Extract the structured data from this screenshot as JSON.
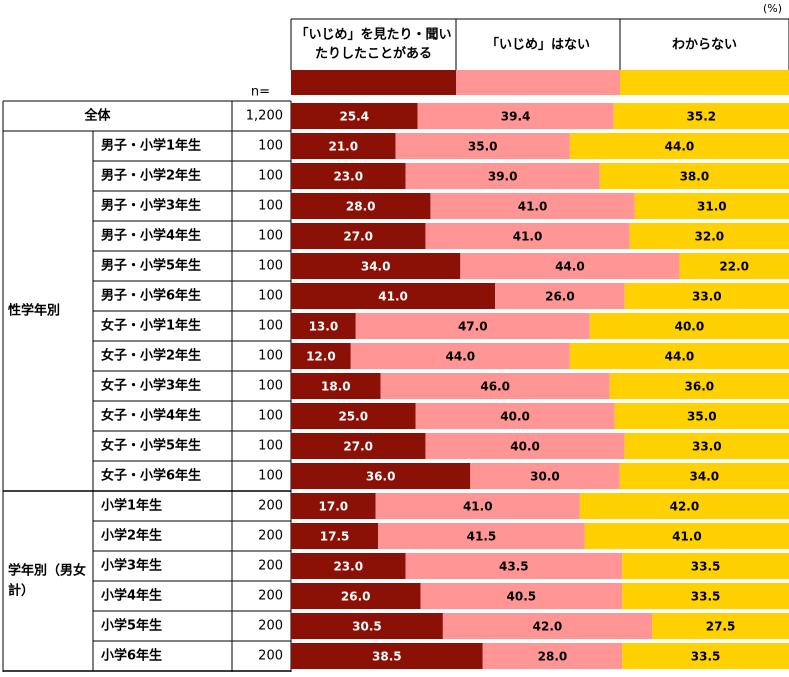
{
  "chart_data": {
    "type": "stacked-bar-100",
    "unit_label": "(%)",
    "n_label": "n=",
    "series": [
      {
        "name": "「いじめ」を見たり・聞いたりしたことがある",
        "color": "#8b1106"
      },
      {
        "name": "「いじめ」はない",
        "color": "#ff9594"
      },
      {
        "name": "わからない",
        "color": "#ffd100"
      }
    ],
    "groups": [
      {
        "label": "",
        "rows": [
          {
            "label": "全体",
            "n": "1,200",
            "values": [
              25.4,
              39.4,
              35.2
            ]
          }
        ]
      },
      {
        "label": "性学年別",
        "rows": [
          {
            "label": "男子・小学1年生",
            "n": "100",
            "values": [
              21.0,
              35.0,
              44.0
            ]
          },
          {
            "label": "男子・小学2年生",
            "n": "100",
            "values": [
              23.0,
              39.0,
              38.0
            ]
          },
          {
            "label": "男子・小学3年生",
            "n": "100",
            "values": [
              28.0,
              41.0,
              31.0
            ]
          },
          {
            "label": "男子・小学4年生",
            "n": "100",
            "values": [
              27.0,
              41.0,
              32.0
            ]
          },
          {
            "label": "男子・小学5年生",
            "n": "100",
            "values": [
              34.0,
              44.0,
              22.0
            ]
          },
          {
            "label": "男子・小学6年生",
            "n": "100",
            "values": [
              41.0,
              26.0,
              33.0
            ]
          },
          {
            "label": "女子・小学1年生",
            "n": "100",
            "values": [
              13.0,
              47.0,
              40.0
            ]
          },
          {
            "label": "女子・小学2年生",
            "n": "100",
            "values": [
              12.0,
              44.0,
              44.0
            ]
          },
          {
            "label": "女子・小学3年生",
            "n": "100",
            "values": [
              18.0,
              46.0,
              36.0
            ]
          },
          {
            "label": "女子・小学4年生",
            "n": "100",
            "values": [
              25.0,
              40.0,
              35.0
            ]
          },
          {
            "label": "女子・小学5年生",
            "n": "100",
            "values": [
              27.0,
              40.0,
              33.0
            ]
          },
          {
            "label": "女子・小学6年生",
            "n": "100",
            "values": [
              36.0,
              30.0,
              34.0
            ]
          }
        ]
      },
      {
        "label": "学年別（男女計）",
        "rows": [
          {
            "label": "小学1年生",
            "n": "200",
            "values": [
              17.0,
              41.0,
              42.0
            ]
          },
          {
            "label": "小学2年生",
            "n": "200",
            "values": [
              17.5,
              41.5,
              41.0
            ]
          },
          {
            "label": "小学3年生",
            "n": "200",
            "values": [
              23.0,
              43.5,
              33.5
            ]
          },
          {
            "label": "小学4年生",
            "n": "200",
            "values": [
              26.0,
              40.5,
              33.5
            ]
          },
          {
            "label": "小学5年生",
            "n": "200",
            "values": [
              30.5,
              42.0,
              27.5
            ]
          },
          {
            "label": "小学6年生",
            "n": "200",
            "values": [
              38.5,
              28.0,
              33.5
            ]
          }
        ]
      }
    ]
  }
}
